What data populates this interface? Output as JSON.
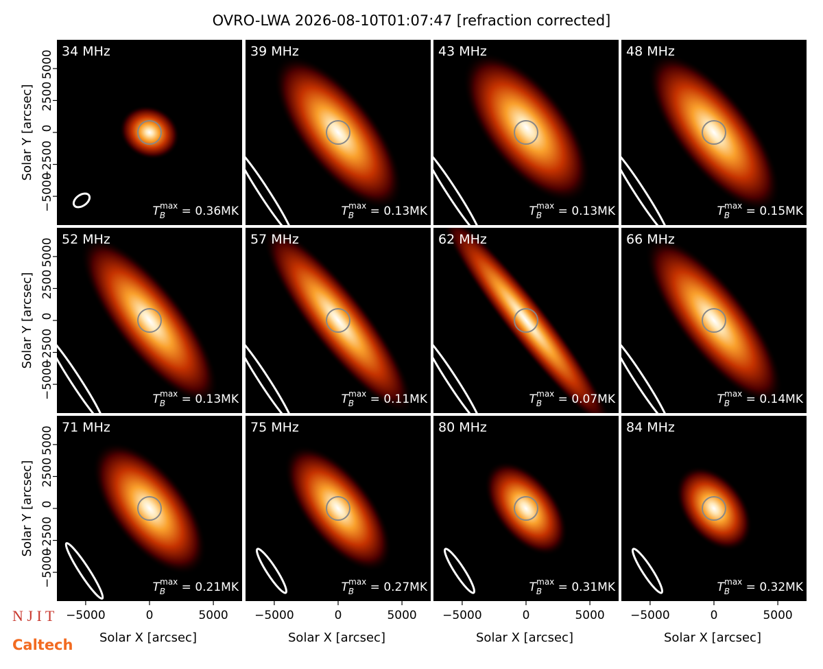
{
  "title": "OVRO-LWA 2026-08-10T01:07:47 [refraction corrected]",
  "axes": {
    "xlabel": "Solar X [arcsec]",
    "ylabel": "Solar Y [arcsec]",
    "xlim": [
      -7250,
      7250
    ],
    "ylim": [
      -7250,
      7250
    ],
    "xticks": [
      {
        "value": -5000,
        "label": "−5000"
      },
      0,
      5000
    ],
    "yticks": [
      {
        "value": -5000,
        "label": "−5000"
      },
      {
        "value": -2500,
        "label": "−2500"
      },
      0,
      2500,
      5000
    ]
  },
  "chart_data": [
    {
      "type": "image",
      "label": "34 MHz",
      "tb": {
        "symbol": "T",
        "sub": "B",
        "sup": "max",
        "text": " = 0.36MK"
      }
    },
    {
      "type": "image",
      "label": "39 MHz",
      "tb": {
        "symbol": "T",
        "sub": "B",
        "sup": "max",
        "text": " = 0.13MK"
      }
    },
    {
      "type": "image",
      "label": "43 MHz",
      "tb": {
        "symbol": "T",
        "sub": "B",
        "sup": "max",
        "text": " = 0.13MK"
      }
    },
    {
      "type": "image",
      "label": "48 MHz",
      "tb": {
        "symbol": "T",
        "sub": "B",
        "sup": "max",
        "text": " = 0.15MK"
      }
    },
    {
      "type": "image",
      "label": "52 MHz",
      "tb": {
        "symbol": "T",
        "sub": "B",
        "sup": "max",
        "text": " = 0.13MK"
      }
    },
    {
      "type": "image",
      "label": "57 MHz",
      "tb": {
        "symbol": "T",
        "sub": "B",
        "sup": "max",
        "text": " = 0.11MK"
      }
    },
    {
      "type": "image",
      "label": "62 MHz",
      "tb": {
        "symbol": "T",
        "sub": "B",
        "sup": "max",
        "text": " = 0.07MK"
      }
    },
    {
      "type": "image",
      "label": "66 MHz",
      "tb": {
        "symbol": "T",
        "sub": "B",
        "sup": "max",
        "text": " = 0.14MK"
      }
    },
    {
      "type": "image",
      "label": "71 MHz",
      "tb": {
        "symbol": "T",
        "sub": "B",
        "sup": "max",
        "text": " = 0.21MK"
      }
    },
    {
      "type": "image",
      "label": "75 MHz",
      "tb": {
        "symbol": "T",
        "sub": "B",
        "sup": "max",
        "text": " = 0.27MK"
      }
    },
    {
      "type": "image",
      "label": "80 MHz",
      "tb": {
        "symbol": "T",
        "sub": "B",
        "sup": "max",
        "text": " = 0.31MK"
      }
    },
    {
      "type": "image",
      "label": "84 MHz",
      "tb": {
        "symbol": "T",
        "sub": "B",
        "sup": "max",
        "text": " = 0.32MK"
      }
    }
  ],
  "logos": [
    "N J I T",
    "Caltech"
  ]
}
